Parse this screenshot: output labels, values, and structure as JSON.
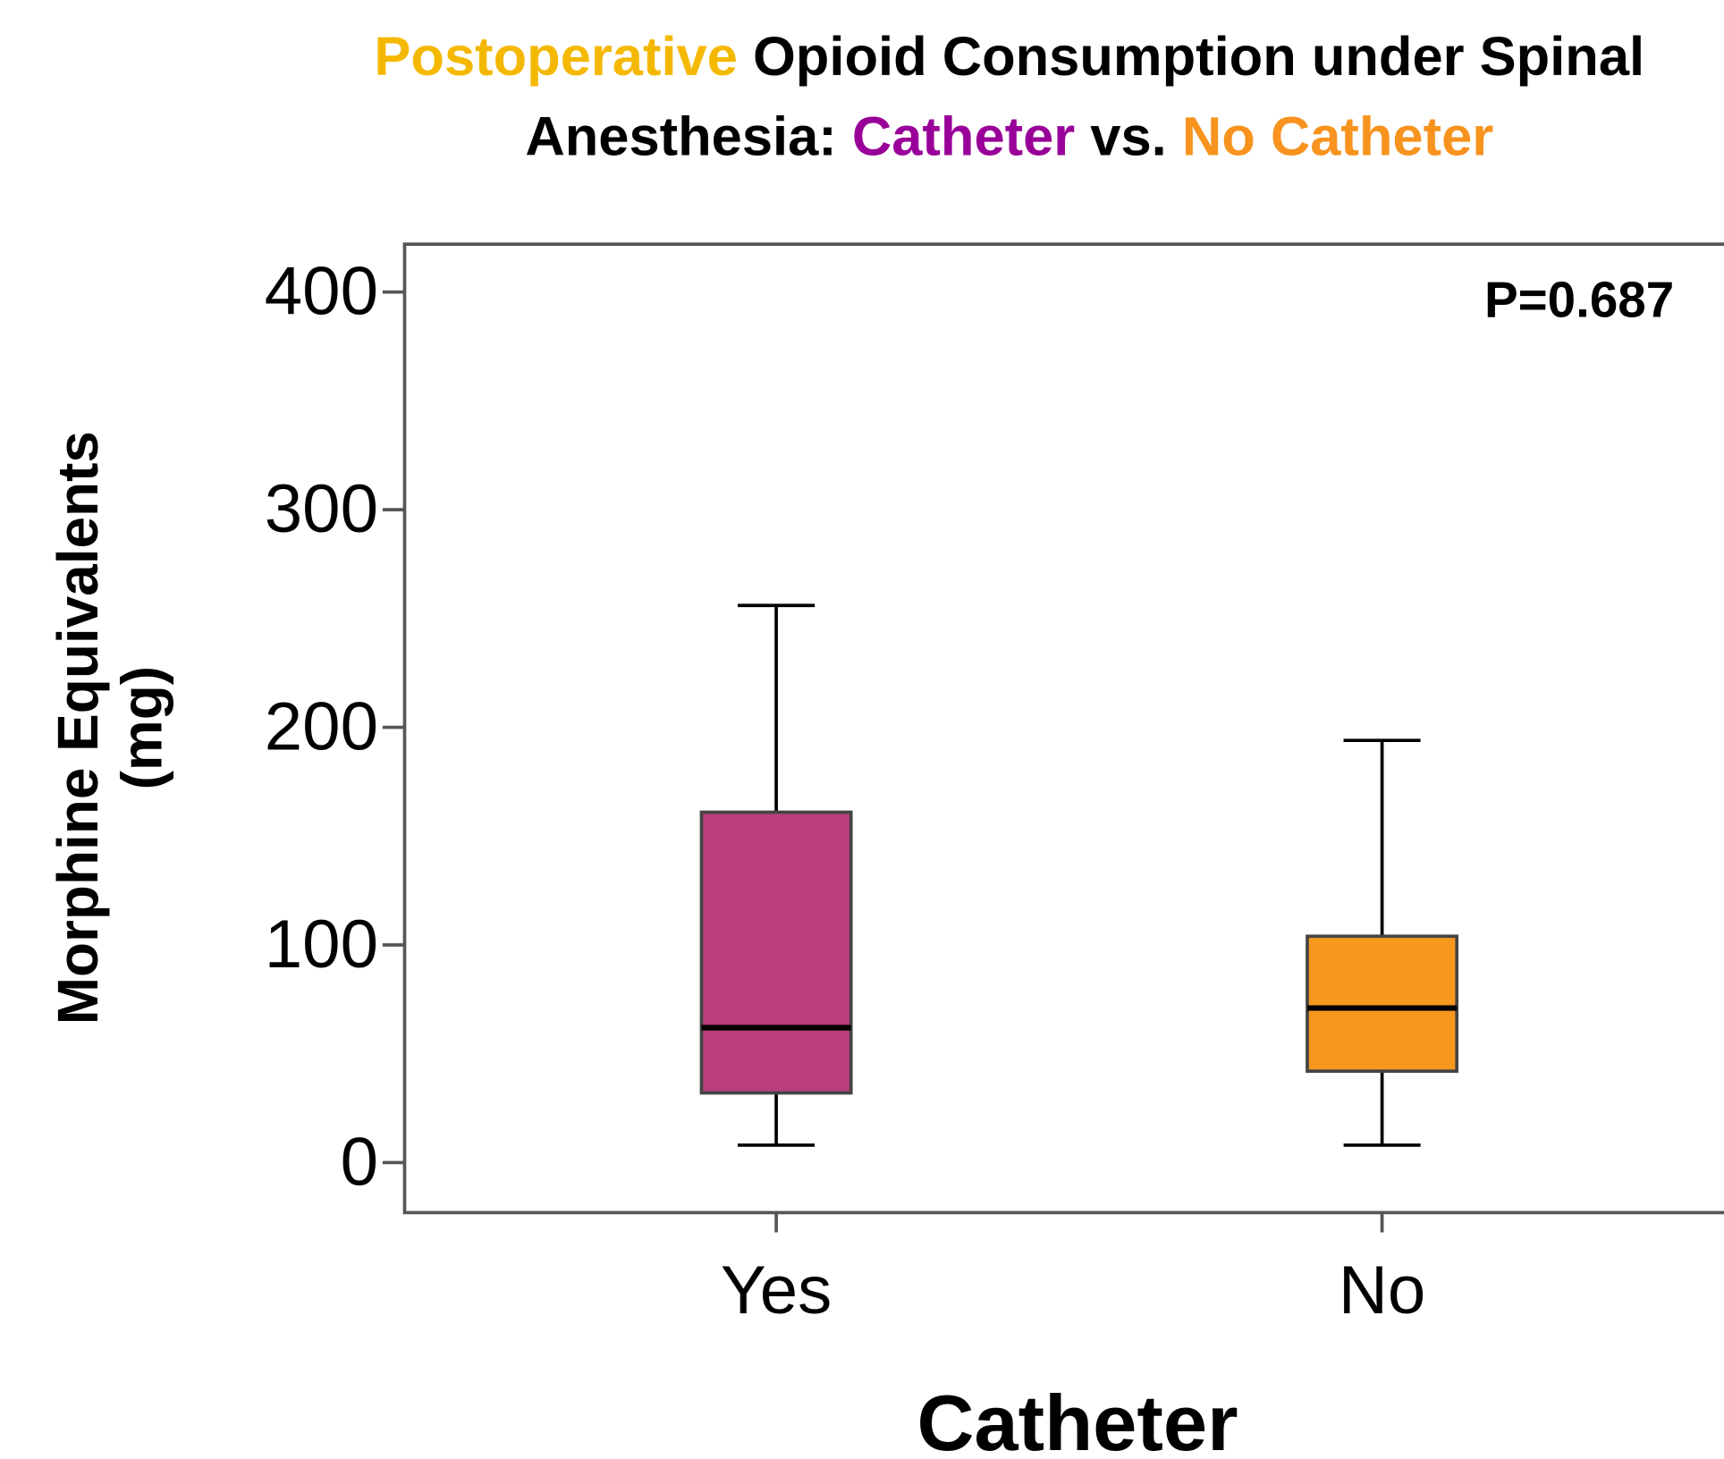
{
  "chart_data": {
    "type": "box",
    "title_lines": [
      [
        {
          "text": "Postoperative",
          "color": "#f5b800"
        },
        {
          "text": " Opioid Consumption under Spinal",
          "color": "#000000"
        }
      ],
      [
        {
          "text": "Anesthesia: ",
          "color": "#000000"
        },
        {
          "text": "Catheter",
          "color": "#990099"
        },
        {
          "text": " vs. ",
          "color": "#000000"
        },
        {
          "text": "No Catheter",
          "color": "#f7931e"
        }
      ]
    ],
    "y_label_lines": [
      "Morphine Equivalents",
      "(mg)"
    ],
    "x_label": "Catheter",
    "annotation": "P=0.687",
    "categories": [
      "Yes",
      "No"
    ],
    "boxes": [
      {
        "whislo": 8,
        "q1": 32,
        "med": 62,
        "q3": 161,
        "whishi": 256,
        "color": "#bb3e7c"
      },
      {
        "whislo": 8,
        "q1": 42,
        "med": 71,
        "q3": 104,
        "whishi": 194,
        "color": "#f7991f"
      }
    ],
    "ylim": [
      -23,
      422
    ],
    "yticks": [
      0,
      100,
      200,
      300,
      400
    ]
  }
}
